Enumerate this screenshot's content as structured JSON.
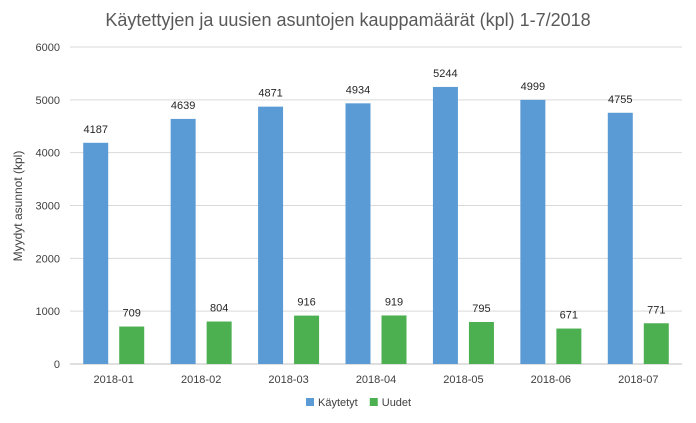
{
  "chart_data": {
    "type": "bar",
    "title": "Käytettyjen ja uusien asuntojen kauppamäärät (kpl) 1-7/2018",
    "xlabel": "",
    "ylabel": "Myydyt asunnot (kpl)",
    "categories": [
      "2018-01",
      "2018-02",
      "2018-03",
      "2018-04",
      "2018-05",
      "2018-06",
      "2018-07"
    ],
    "series": [
      {
        "name": "Käytetyt",
        "color": "#5b9bd5",
        "values": [
          4187,
          4639,
          4871,
          4934,
          5244,
          4999,
          4755
        ]
      },
      {
        "name": "Uudet",
        "color": "#4caf50",
        "values": [
          709,
          804,
          916,
          919,
          795,
          671,
          771
        ]
      }
    ],
    "ylim": [
      0,
      6000
    ],
    "yticks": [
      0,
      1000,
      2000,
      3000,
      4000,
      5000,
      6000
    ],
    "grid": true,
    "legend": "bottom-center"
  }
}
